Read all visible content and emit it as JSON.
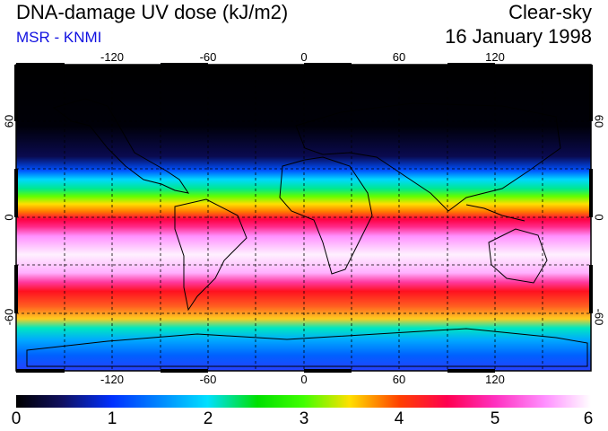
{
  "header": {
    "title": "DNA-damage UV dose (kJ/m2)",
    "subtitle": "MSR - KNMI",
    "sky_condition": "Clear-sky",
    "date": "16 January 1998"
  },
  "map": {
    "longitude_labels": [
      "-120",
      "-60",
      "0",
      "60",
      "120"
    ],
    "latitude_labels": [
      "60",
      "0",
      "-60"
    ]
  },
  "colorbar": {
    "tick_labels": [
      "0",
      "1",
      "2",
      "3",
      "4",
      "5",
      "6"
    ]
  },
  "colors": {
    "subtitle": "#1010e0",
    "polar_night": "#000000"
  }
}
